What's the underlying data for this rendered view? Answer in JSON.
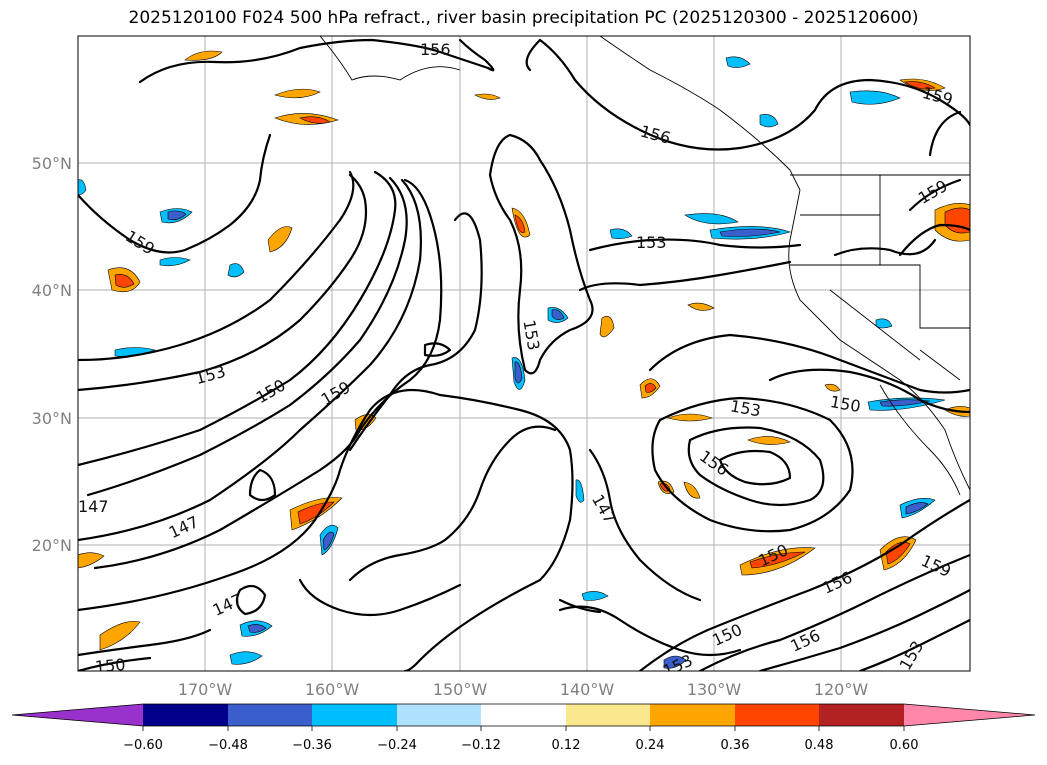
{
  "title": "2025120100 F024 500 hPa refract., river basin precipitation PC (2025120300 - 2025120600)",
  "lat_labels": [
    "50°N",
    "40°N",
    "30°N",
    "20°N"
  ],
  "lon_labels": [
    "170°W",
    "160°W",
    "150°W",
    "140°W",
    "130°W",
    "120°W"
  ],
  "contour_labels": [
    "156",
    "156",
    "159",
    "159",
    "153",
    "159",
    "153",
    "150",
    "159",
    "153",
    "150",
    "153",
    "156",
    "147",
    "147",
    "147",
    "150",
    "156",
    "159",
    "147",
    "150",
    "150",
    "153",
    "156",
    "153"
  ],
  "colorbar": {
    "ticks": [
      "−0.60",
      "−0.48",
      "−0.36",
      "−0.24",
      "−0.12",
      "0.12",
      "0.24",
      "0.36",
      "0.48",
      "0.60"
    ],
    "colors": [
      "#9932cc",
      "#00008b",
      "#3a5fcd",
      "#00bfff",
      "#b0e2ff",
      "#ffffff",
      "#fbe88e",
      "#ffa500",
      "#ff4500",
      "#b22222",
      "#ff88aa"
    ]
  }
}
